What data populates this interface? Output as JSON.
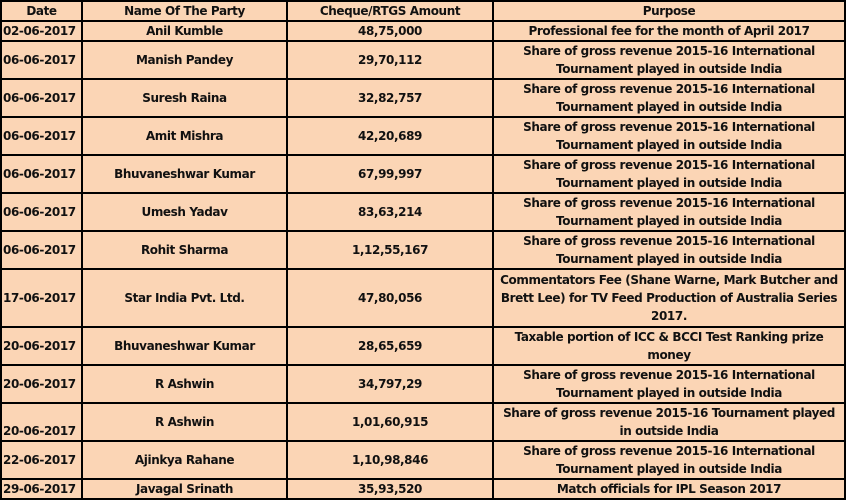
{
  "headers": {
    "date": "Date",
    "party": "Name Of The Party",
    "amount": "Cheque/RTGS Amount",
    "purpose": "Purpose"
  },
  "rows": [
    {
      "date": "02-06-2017",
      "party": "Anil Kumble",
      "amount": "48,75,000",
      "purpose": "Professional fee for the month of April 2017"
    },
    {
      "date": "06-06-2017",
      "party": "Manish Pandey",
      "amount": "29,70,112",
      "purpose": "Share of gross revenue 2015-16 International Tournament played in outside India"
    },
    {
      "date": "06-06-2017",
      "party": "Suresh Raina",
      "amount": "32,82,757",
      "purpose": "Share of gross revenue 2015-16 International Tournament played in outside India"
    },
    {
      "date": "06-06-2017",
      "party": "Amit Mishra",
      "amount": "42,20,689",
      "purpose": "Share of gross revenue 2015-16 International Tournament played in outside India"
    },
    {
      "date": "06-06-2017",
      "party": "Bhuvaneshwar Kumar",
      "amount": "67,99,997",
      "purpose": "Share of gross revenue 2015-16 International Tournament played in outside India"
    },
    {
      "date": "06-06-2017",
      "party": "Umesh Yadav",
      "amount": "83,63,214",
      "purpose": "Share of gross revenue 2015-16 International Tournament played in outside India"
    },
    {
      "date": "06-06-2017",
      "party": "Rohit Sharma",
      "amount": "1,12,55,167",
      "purpose": "Share of gross revenue 2015-16 International Tournament played in outside India"
    },
    {
      "date": "17-06-2017",
      "party": "Star India Pvt. Ltd.",
      "amount": "47,80,056",
      "purpose": "Commentators Fee (Shane Warne, Mark Butcher and Brett Lee) for TV Feed Production of Australia Series 2017."
    },
    {
      "date": "20-06-2017",
      "party": "Bhuvaneshwar Kumar",
      "amount": "28,65,659",
      "purpose": "Taxable portion of ICC & BCCI Test Ranking prize money"
    },
    {
      "date": "20-06-2017",
      "party": "R Ashwin",
      "amount": "34,797,29",
      "purpose": "Share of gross revenue 2015-16 International Tournament played in outside India"
    },
    {
      "date": "20-06-2017",
      "party": "R Ashwin",
      "amount": "1,01,60,915",
      "purpose": "Share of gross revenue 2015-16 Tournament played in outside India"
    },
    {
      "date": "22-06-2017",
      "party": "Ajinkya Rahane",
      "amount": "1,10,98,846",
      "purpose": "Share of gross revenue 2015-16 International Tournament played in outside India"
    },
    {
      "date": "29-06-2017",
      "party": "Javagal Srinath",
      "amount": "35,93,520",
      "purpose": "Match officials for IPL Season 2017"
    }
  ]
}
